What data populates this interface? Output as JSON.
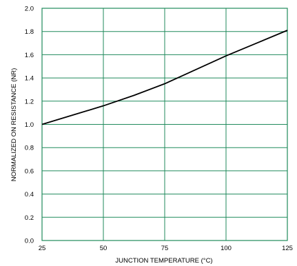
{
  "chart_data": {
    "type": "line",
    "title": "",
    "xlabel": "JUNCTION TEMPERATURE (°C)",
    "ylabel": "NORMALIZED ON RESISTANCE (NR)",
    "xlim": [
      25,
      125
    ],
    "ylim": [
      0.0,
      2.0
    ],
    "x_ticks": [
      "25",
      "50",
      "75",
      "100",
      "125"
    ],
    "y_ticks": [
      "0.0",
      "0.2",
      "0.4",
      "0.6",
      "0.8",
      "1.0",
      "1.2",
      "1.4",
      "1.6",
      "1.8",
      "2.0"
    ],
    "grid": true,
    "grid_color": "#1f8a5b",
    "line_color": "#000000",
    "series": [
      {
        "x": [
          25,
          37.5,
          50,
          62.5,
          75,
          87.5,
          100,
          112.5,
          125
        ],
        "y": [
          1.0,
          1.08,
          1.16,
          1.25,
          1.35,
          1.47,
          1.59,
          1.7,
          1.81
        ]
      }
    ]
  }
}
